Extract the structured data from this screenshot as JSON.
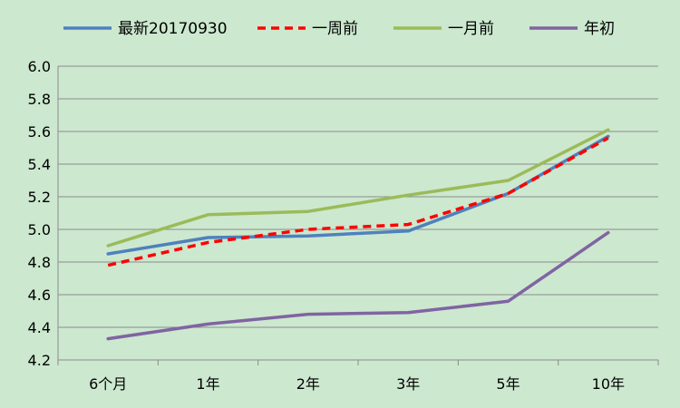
{
  "chart_data": {
    "type": "line",
    "categories": [
      "6个月",
      "1年",
      "2年",
      "3年",
      "5年",
      "10年"
    ],
    "series": [
      {
        "name": "最新20170930",
        "values": [
          4.85,
          4.95,
          4.96,
          4.99,
          5.22,
          5.57
        ],
        "color": "#4f81bd",
        "dash": "solid"
      },
      {
        "name": "一周前",
        "values": [
          4.78,
          4.92,
          5.0,
          5.03,
          5.22,
          5.56
        ],
        "color": "#ff0000",
        "dash": "dashed"
      },
      {
        "name": "一月前",
        "values": [
          4.9,
          5.09,
          5.11,
          5.21,
          5.3,
          5.61
        ],
        "color": "#9bbb59",
        "dash": "solid"
      },
      {
        "name": "年初",
        "values": [
          4.33,
          4.42,
          4.48,
          4.49,
          4.56,
          4.98
        ],
        "color": "#8064a2",
        "dash": "solid"
      }
    ],
    "title": "",
    "xlabel": "",
    "ylabel": "",
    "ylim": [
      4.2,
      6.0
    ],
    "yticks": [
      "4.2",
      "4.4",
      "4.6",
      "4.8",
      "5.0",
      "5.2",
      "5.4",
      "5.6",
      "5.8",
      "6.0"
    ],
    "grid": true,
    "legend_position": "top"
  }
}
